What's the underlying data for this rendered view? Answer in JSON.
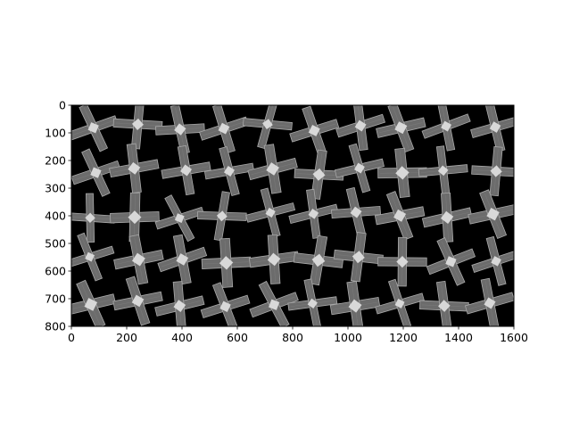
{
  "image": {
    "description_key": "grid of 50 grayscale crossing-beam tiles",
    "rows": 5,
    "cols": 10,
    "background": "#000000",
    "beam_color": "#6c6c6c",
    "beam_edge_color": "#a9a9a9",
    "center_color": "#d8d8d8"
  },
  "axes": {
    "xlim": [
      0,
      1600
    ],
    "ylim": [
      800,
      0
    ],
    "x_ticks": [
      "0",
      "200",
      "400",
      "600",
      "800",
      "1000",
      "1200",
      "1400",
      "1600"
    ],
    "y_ticks": [
      "0",
      "100",
      "200",
      "300",
      "400",
      "500",
      "600",
      "700",
      "800"
    ]
  }
}
